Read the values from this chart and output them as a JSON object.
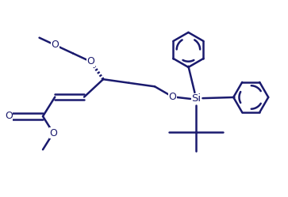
{
  "line_color": "#1a1a6e",
  "bg_color": "#ffffff",
  "lw": 1.8,
  "figsize": [
    3.63,
    2.49
  ],
  "dpi": 100,
  "xlim": [
    0,
    9.075
  ],
  "ylim": [
    0,
    6.225
  ]
}
